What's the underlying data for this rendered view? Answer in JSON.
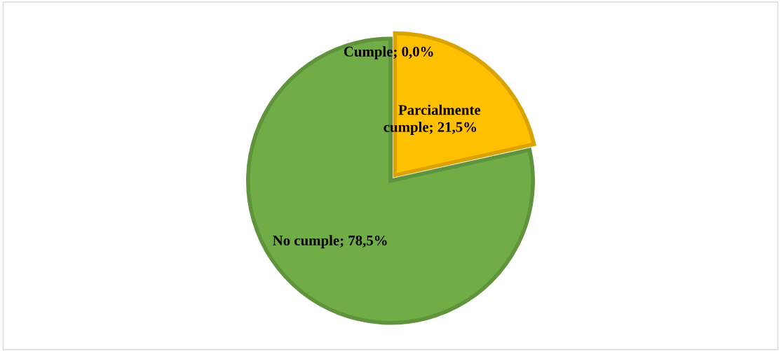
{
  "chart_data": {
    "type": "pie",
    "categories": [
      "Cumple",
      "Parcialmente cumple",
      "No cumple"
    ],
    "values": [
      0.0,
      21.5,
      78.5
    ],
    "colors": [
      "#4472c4",
      "#ffc000",
      "#70ad47"
    ],
    "value_labels": [
      "; 0,0%",
      "; 21,5%",
      "; 78,5%"
    ],
    "legend": false
  }
}
